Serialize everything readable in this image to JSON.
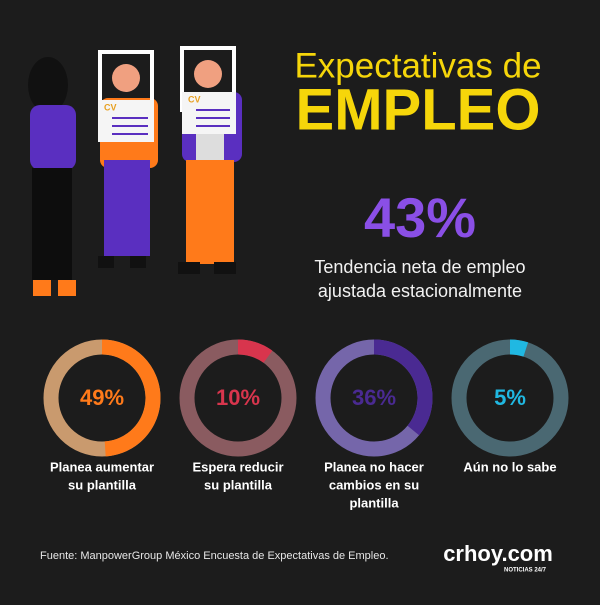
{
  "header": {
    "line1": "Expectativas de",
    "line2": "EMPLEO"
  },
  "headline": {
    "figure": "43%",
    "caption": [
      "Tendencia neta de empleo",
      "ajustada estacionalmente"
    ]
  },
  "chart_data": [
    {
      "type": "donut",
      "range": [
        0,
        100
      ],
      "values": [
        49
      ],
      "value_labels": [
        "49%"
      ],
      "color": "#ff7a1a",
      "track_color": "#c99a6e",
      "label": [
        "Planea aumentar",
        "su plantilla"
      ]
    },
    {
      "type": "donut",
      "range": [
        0,
        100
      ],
      "values": [
        10
      ],
      "value_labels": [
        "10%"
      ],
      "color": "#d8354d",
      "track_color": "#8a5b60",
      "label": [
        "Espera reducir",
        "su plantilla"
      ]
    },
    {
      "type": "donut",
      "range": [
        0,
        100
      ],
      "values": [
        36
      ],
      "value_labels": [
        "36%"
      ],
      "color": "#4a2a92",
      "track_color": "#7566aa",
      "label": [
        "Planea no hacer",
        "cambios en su",
        "plantilla"
      ]
    },
    {
      "type": "donut",
      "range": [
        0,
        100
      ],
      "values": [
        5
      ],
      "value_labels": [
        "5%"
      ],
      "color": "#20b8e2",
      "track_color": "#4a6872",
      "label": [
        "Aún no lo sabe"
      ]
    }
  ],
  "footer": {
    "source": "Fuente: ManpowerGroup México Encuesta de Expectativas de Empleo.",
    "logo": "crhoy.com",
    "logo_tag": "NOTICIAS 24/7"
  }
}
